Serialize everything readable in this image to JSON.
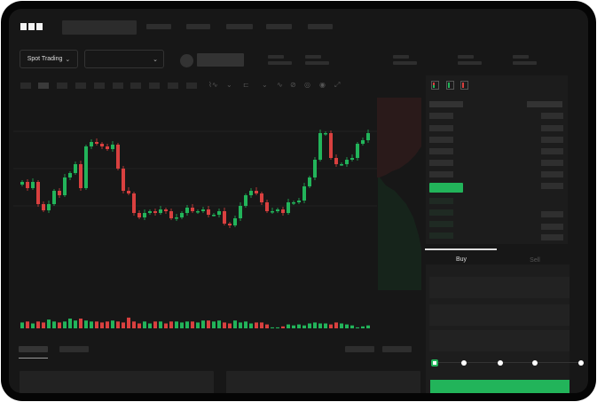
{
  "header": {
    "logo": "OKX"
  },
  "toolbar": {
    "market_type": "Spot Trading"
  },
  "order_form": {
    "tabs": [
      {
        "label": "Buy",
        "active": true
      },
      {
        "label": "Sell",
        "active": false
      }
    ],
    "leverage_slider_value": 0,
    "submit_color": "#22b45a"
  },
  "colors": {
    "up": "#22b45a",
    "down": "#d9403f",
    "background": "#171717"
  },
  "chart_data": {
    "type": "candlestick",
    "title": "",
    "xlabel": "",
    "ylabel": "",
    "grid": true,
    "close": [
      65,
      58,
      65,
      40,
      33,
      40,
      55,
      50,
      70,
      75,
      85,
      58,
      105,
      110,
      108,
      105,
      102,
      107,
      80,
      55,
      52,
      30,
      25,
      30,
      32,
      30,
      34,
      32,
      24,
      25,
      30,
      36,
      32,
      32,
      34,
      28,
      28,
      32,
      18,
      16,
      24,
      38,
      50,
      55,
      52,
      42,
      32,
      32,
      34,
      30,
      42,
      42,
      44,
      60,
      70,
      90,
      120,
      120,
      92,
      85,
      85,
      90,
      92,
      108,
      112,
      120
    ],
    "open": [
      62,
      65,
      58,
      65,
      40,
      33,
      40,
      55,
      50,
      70,
      75,
      85,
      58,
      105,
      110,
      108,
      105,
      102,
      107,
      80,
      55,
      52,
      30,
      25,
      30,
      32,
      30,
      34,
      32,
      24,
      25,
      30,
      36,
      32,
      32,
      34,
      28,
      28,
      32,
      18,
      16,
      24,
      38,
      50,
      55,
      52,
      42,
      32,
      32,
      34,
      30,
      42,
      42,
      44,
      60,
      70,
      90,
      120,
      120,
      92,
      85,
      85,
      90,
      92,
      108,
      112
    ],
    "volume": [
      6,
      7,
      5,
      7,
      6,
      9,
      7,
      6,
      7,
      10,
      8,
      10,
      8,
      7,
      7,
      6,
      7,
      8,
      7,
      6,
      11,
      7,
      5,
      7,
      5,
      7,
      7,
      5,
      7,
      7,
      6,
      7,
      7,
      6,
      8,
      8,
      7,
      8,
      6,
      5,
      8,
      6,
      7,
      5,
      6,
      6,
      4,
      1,
      1,
      2,
      4,
      3,
      4,
      3,
      5,
      6,
      5,
      5,
      4,
      6,
      5,
      4,
      3,
      1,
      2,
      3
    ]
  }
}
